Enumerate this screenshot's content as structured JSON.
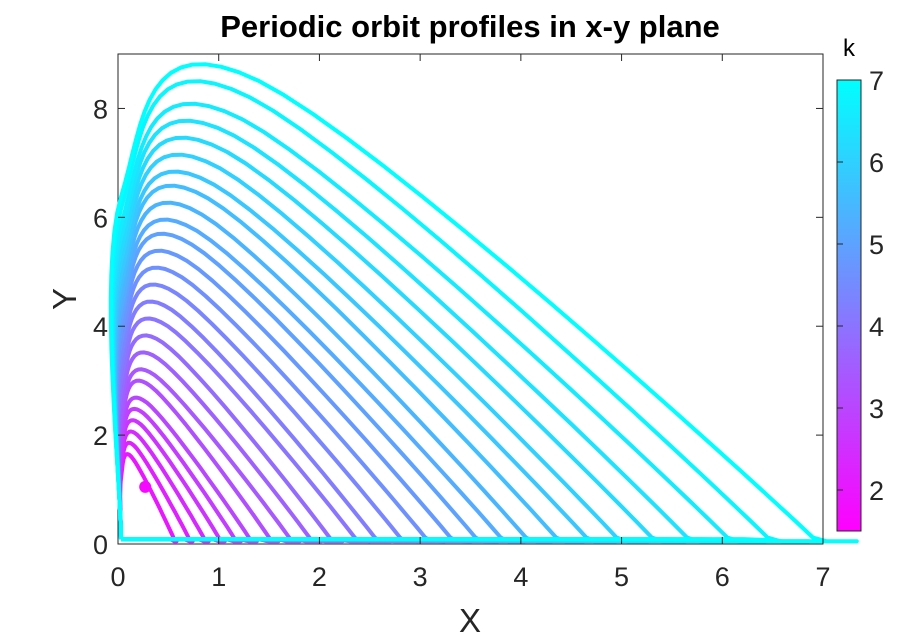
{
  "chart_data": {
    "type": "line",
    "title": "Periodic orbit profiles in x-y plane",
    "xlabel": "X",
    "ylabel": "Y",
    "xlim": [
      0,
      7
    ],
    "ylim": [
      0,
      9
    ],
    "xticks": [
      "0",
      "1",
      "2",
      "3",
      "4",
      "5",
      "6",
      "7"
    ],
    "yticks": [
      "0",
      "2",
      "4",
      "6",
      "8"
    ],
    "colorbar": {
      "label": "k",
      "range": [
        1.5,
        7
      ],
      "ticks": [
        "2",
        "3",
        "4",
        "5",
        "6",
        "7"
      ],
      "colormap": "cool",
      "colors": {
        "low": "#ff00ff",
        "high": "#00ffff"
      }
    },
    "equilibrium_point": {
      "x": 0.27,
      "y": 1.05
    },
    "orbits": [
      {
        "k": 2.0,
        "xmax": 0.55,
        "ymax": 1.6
      },
      {
        "k": 2.2,
        "xmax": 0.7,
        "ymax": 1.8
      },
      {
        "k": 2.4,
        "xmax": 0.85,
        "ymax": 2.0
      },
      {
        "k": 2.6,
        "xmax": 1.0,
        "ymax": 2.2
      },
      {
        "k": 2.8,
        "xmax": 1.15,
        "ymax": 2.4
      },
      {
        "k": 3.0,
        "xmax": 1.3,
        "ymax": 2.6
      },
      {
        "k": 3.2,
        "xmax": 1.5,
        "ymax": 2.9
      },
      {
        "k": 3.4,
        "xmax": 1.7,
        "ymax": 3.1
      },
      {
        "k": 3.6,
        "xmax": 1.9,
        "ymax": 3.4
      },
      {
        "k": 3.8,
        "xmax": 2.1,
        "ymax": 3.7
      },
      {
        "k": 4.0,
        "xmax": 2.35,
        "ymax": 4.0
      },
      {
        "k": 4.2,
        "xmax": 2.55,
        "ymax": 4.3
      },
      {
        "k": 4.4,
        "xmax": 2.8,
        "ymax": 4.6
      },
      {
        "k": 4.6,
        "xmax": 3.05,
        "ymax": 4.9
      },
      {
        "k": 4.8,
        "xmax": 3.3,
        "ymax": 5.2
      },
      {
        "k": 5.0,
        "xmax": 3.55,
        "ymax": 5.5
      },
      {
        "k": 5.2,
        "xmax": 3.8,
        "ymax": 5.75
      },
      {
        "k": 5.4,
        "xmax": 4.05,
        "ymax": 6.05
      },
      {
        "k": 5.6,
        "xmax": 4.35,
        "ymax": 6.35
      },
      {
        "k": 5.8,
        "xmax": 4.65,
        "ymax": 6.6
      },
      {
        "k": 6.0,
        "xmax": 4.95,
        "ymax": 6.9
      },
      {
        "k": 6.2,
        "xmax": 5.3,
        "ymax": 7.2
      },
      {
        "k": 6.4,
        "xmax": 5.65,
        "ymax": 7.5
      },
      {
        "k": 6.6,
        "xmax": 6.05,
        "ymax": 7.8
      },
      {
        "k": 6.8,
        "xmax": 6.45,
        "ymax": 8.2
      },
      {
        "k": 7.0,
        "xmax": 6.9,
        "ymax": 8.5
      }
    ]
  }
}
